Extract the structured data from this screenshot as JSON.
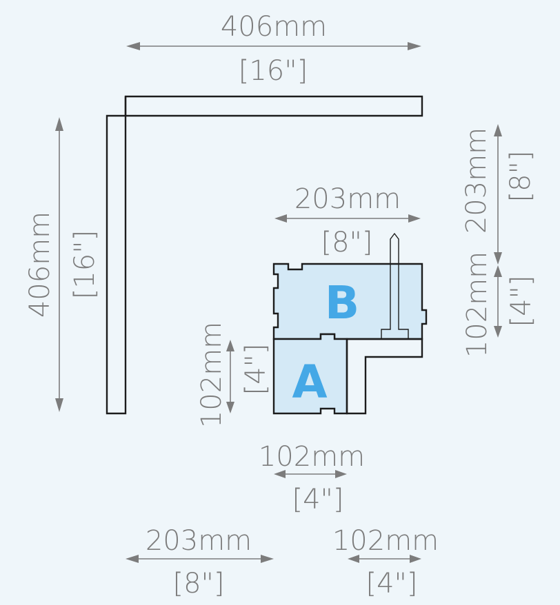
{
  "dimensions": {
    "top_width": {
      "metric": "406mm",
      "imperial": "[16\"]"
    },
    "left_height": {
      "metric": "406mm",
      "imperial": "[16\"]"
    },
    "b_width": {
      "metric": "203mm",
      "imperial": "[8\"]"
    },
    "right_upper_height": {
      "metric": "203mm",
      "imperial": "[8\"]"
    },
    "right_lower_height": {
      "metric": "102mm",
      "imperial": "[4\"]"
    },
    "a_height": {
      "metric": "102mm",
      "imperial": "[4\"]"
    },
    "a_width": {
      "metric": "102mm",
      "imperial": "[4\"]"
    },
    "bottom_left_width": {
      "metric": "203mm",
      "imperial": "[8\"]"
    },
    "bottom_right_width": {
      "metric": "102mm",
      "imperial": "[4\"]"
    }
  },
  "blocks": {
    "a_label": "A",
    "b_label": "B"
  },
  "colors": {
    "background": "#eff6fa",
    "block_fill": "#d4e9f6",
    "outline": "#1c1c1c",
    "dimension_text": "#7c7c7c",
    "block_letter": "#45a8e6"
  }
}
